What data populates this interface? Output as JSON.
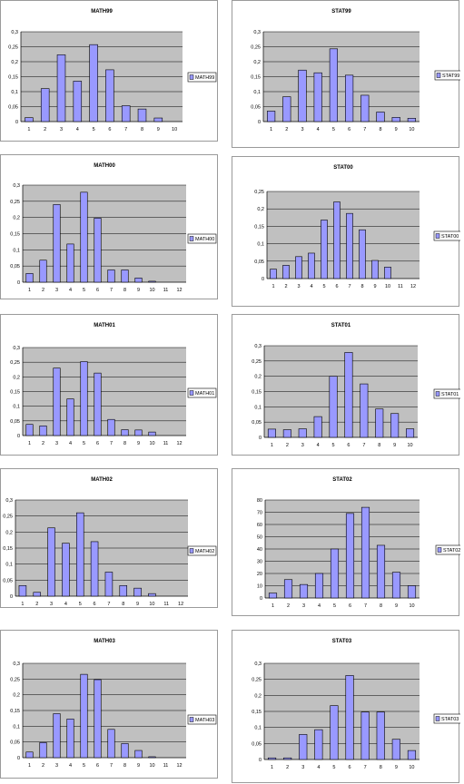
{
  "chart_data": [
    {
      "type": "bar",
      "title": "MATH99",
      "categories": [
        "1",
        "2",
        "3",
        "4",
        "5",
        "6",
        "7",
        "8",
        "9",
        "10"
      ],
      "series": [
        {
          "name": "MATH99",
          "values": [
            0.013,
            0.11,
            0.223,
            0.135,
            0.257,
            0.173,
            0.053,
            0.042,
            0.012,
            0
          ]
        }
      ],
      "ylim": [
        0,
        0.3
      ],
      "yticks": [
        "0",
        "0,05",
        "0,1",
        "0,15",
        "0,2",
        "0,25",
        "0,3"
      ],
      "grid": true,
      "legend": "right"
    },
    {
      "type": "bar",
      "title": "STAT99",
      "categories": [
        "1",
        "2",
        "3",
        "4",
        "5",
        "6",
        "7",
        "8",
        "9",
        "10"
      ],
      "series": [
        {
          "name": "STAT99",
          "values": [
            0.035,
            0.083,
            0.172,
            0.163,
            0.243,
            0.155,
            0.088,
            0.032,
            0.014,
            0.011
          ]
        }
      ],
      "ylim": [
        0,
        0.3
      ],
      "yticks": [
        "0",
        "0,05",
        "0,1",
        "0,15",
        "0,2",
        "0,25",
        "0,3"
      ],
      "grid": true,
      "legend": "right"
    },
    {
      "type": "bar",
      "title": "MATH00",
      "categories": [
        "1",
        "2",
        "3",
        "4",
        "5",
        "6",
        "7",
        "8",
        "9",
        "10",
        "11",
        "12"
      ],
      "series": [
        {
          "name": "MATH00",
          "values": [
            0.027,
            0.068,
            0.24,
            0.118,
            0.278,
            0.198,
            0.038,
            0.038,
            0.013,
            0.003,
            0,
            0
          ]
        }
      ],
      "ylim": [
        0,
        0.3
      ],
      "yticks": [
        "0",
        "0,05",
        "0,1",
        "0,15",
        "0,2",
        "0,25",
        "0,3"
      ],
      "grid": true,
      "legend": "right"
    },
    {
      "type": "bar",
      "title": "STAT00",
      "categories": [
        "1",
        "2",
        "3",
        "4",
        "5",
        "6",
        "7",
        "8",
        "9",
        "10",
        "11",
        "12"
      ],
      "series": [
        {
          "name": "STAT00",
          "values": [
            0.027,
            0.038,
            0.063,
            0.073,
            0.168,
            0.22,
            0.187,
            0.14,
            0.052,
            0.033,
            0,
            0
          ]
        }
      ],
      "ylim": [
        0,
        0.25
      ],
      "yticks": [
        "0",
        "0,05",
        "0,1",
        "0,15",
        "0,2",
        "0,25"
      ],
      "grid": true,
      "legend": "right"
    },
    {
      "type": "bar",
      "title": "MATH01",
      "categories": [
        "1",
        "2",
        "3",
        "4",
        "5",
        "6",
        "7",
        "8",
        "9",
        "10",
        "11",
        "12"
      ],
      "series": [
        {
          "name": "MATH01",
          "values": [
            0.038,
            0.033,
            0.23,
            0.125,
            0.252,
            0.213,
            0.055,
            0.02,
            0.019,
            0.012,
            0,
            0
          ]
        }
      ],
      "ylim": [
        0,
        0.3
      ],
      "yticks": [
        "0",
        "0,05",
        "0,1",
        "0,15",
        "0,2",
        "0,25",
        "0,3"
      ],
      "grid": true,
      "legend": "right"
    },
    {
      "type": "bar",
      "title": "STAT01",
      "categories": [
        "1",
        "2",
        "3",
        "4",
        "5",
        "6",
        "7",
        "8",
        "9",
        "10"
      ],
      "series": [
        {
          "name": "STAT01",
          "values": [
            0.027,
            0.025,
            0.028,
            0.068,
            0.2,
            0.278,
            0.175,
            0.093,
            0.078,
            0.028
          ]
        }
      ],
      "ylim": [
        0,
        0.3
      ],
      "yticks": [
        "0",
        "0,05",
        "0,1",
        "0,15",
        "0,2",
        "0,25",
        "0,3"
      ],
      "grid": true,
      "legend": "right"
    },
    {
      "type": "bar",
      "title": "MATH02",
      "categories": [
        "1",
        "2",
        "3",
        "4",
        "5",
        "6",
        "7",
        "8",
        "9",
        "10",
        "11",
        "12"
      ],
      "series": [
        {
          "name": "MATH02",
          "values": [
            0.033,
            0.012,
            0.213,
            0.165,
            0.26,
            0.17,
            0.075,
            0.033,
            0.025,
            0.008,
            0,
            0
          ]
        }
      ],
      "ylim": [
        0,
        0.3
      ],
      "yticks": [
        "0",
        "0,05",
        "0,1",
        "0,15",
        "0,2",
        "0,25",
        "0,3"
      ],
      "grid": true,
      "legend": "right"
    },
    {
      "type": "bar",
      "title": "STAT02",
      "categories": [
        "1",
        "2",
        "3",
        "4",
        "5",
        "6",
        "7",
        "8",
        "9",
        "10"
      ],
      "series": [
        {
          "name": "STAT02",
          "values": [
            4,
            15,
            11,
            20,
            40,
            69,
            74,
            43,
            21,
            10
          ]
        }
      ],
      "ylim": [
        0,
        80
      ],
      "yticks": [
        "0",
        "10",
        "20",
        "30",
        "40",
        "50",
        "60",
        "70",
        "80"
      ],
      "grid": true,
      "legend": "right"
    },
    {
      "type": "bar",
      "title": "MATH03",
      "categories": [
        "1",
        "2",
        "3",
        "4",
        "5",
        "6",
        "7",
        "8",
        "9",
        "10",
        "11",
        "12"
      ],
      "series": [
        {
          "name": "MATH03",
          "values": [
            0.018,
            0.048,
            0.14,
            0.123,
            0.265,
            0.248,
            0.09,
            0.045,
            0.023,
            0.003,
            0,
            0
          ]
        }
      ],
      "ylim": [
        0,
        0.3
      ],
      "yticks": [
        "0",
        "0,05",
        "0,1",
        "0,15",
        "0,2",
        "0,25",
        "0,3"
      ],
      "grid": true,
      "legend": "right"
    },
    {
      "type": "bar",
      "title": "STAT03",
      "categories": [
        "1",
        "2",
        "3",
        "4",
        "5",
        "6",
        "7",
        "8",
        "9",
        "10"
      ],
      "series": [
        {
          "name": "STAT03",
          "values": [
            0.005,
            0.005,
            0.078,
            0.093,
            0.168,
            0.262,
            0.148,
            0.148,
            0.063,
            0.028
          ]
        }
      ],
      "ylim": [
        0,
        0.3
      ],
      "yticks": [
        "0",
        "0,05",
        "0,1",
        "0,15",
        "0,2",
        "0,25",
        "0,3"
      ],
      "grid": true,
      "legend": "right"
    }
  ]
}
